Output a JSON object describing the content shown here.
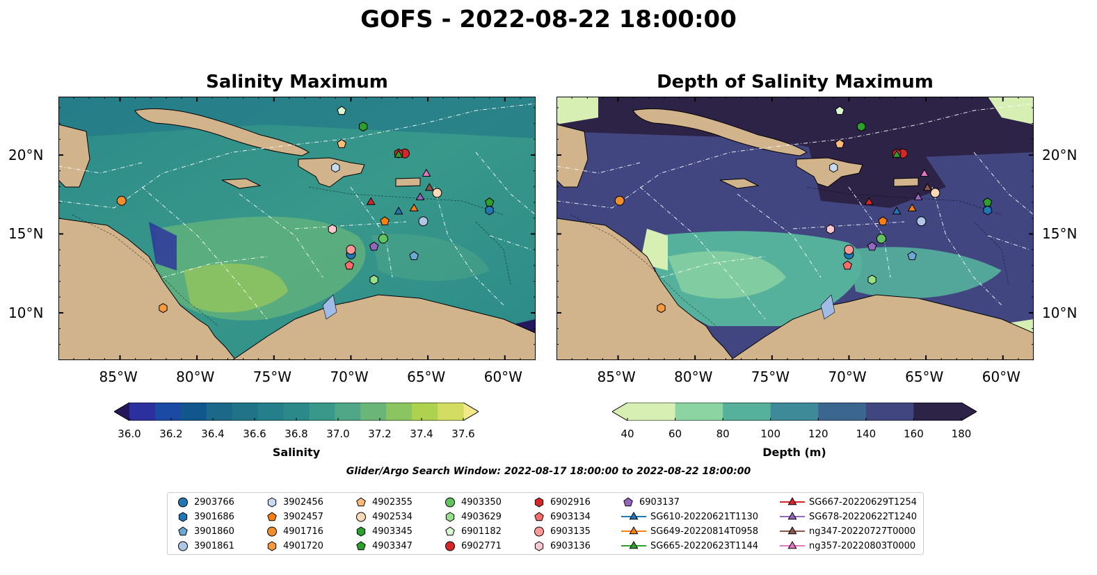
{
  "suptitle": "GOFS - 2022-08-22 18:00:00",
  "left_panel": {
    "title": "Salinity Maximum",
    "colorbar": {
      "label": "Salinity",
      "ticks": [
        "36.0",
        "36.2",
        "36.4",
        "36.6",
        "36.8",
        "37.0",
        "37.2",
        "37.4",
        "37.6"
      ],
      "colors": [
        "#24175a",
        "#2c2f9e",
        "#1b4aa4",
        "#11578e",
        "#1b6889",
        "#217488",
        "#247f8a",
        "#2b8a89",
        "#38988a",
        "#4fa788",
        "#6ab679",
        "#8ac562",
        "#aed24f",
        "#d2dd62",
        "#f1e98b"
      ]
    }
  },
  "right_panel": {
    "title": "Depth of Salinity Maximum",
    "colorbar": {
      "label": "Depth (m)",
      "ticks": [
        "40",
        "60",
        "80",
        "100",
        "120",
        "140",
        "160",
        "180"
      ],
      "colors": [
        "#d8efb4",
        "#8cd5a3",
        "#55b19c",
        "#3f8a99",
        "#3b6690",
        "#414680",
        "#2d2346"
      ]
    }
  },
  "lon_labels": [
    "85°W",
    "80°W",
    "75°W",
    "70°W",
    "65°W",
    "60°W"
  ],
  "lat_labels": [
    "20°N",
    "15°N",
    "10°N"
  ],
  "search_window": "Glider/Argo Search Window: 2022-08-17 18:00:00 to 2022-08-22 18:00:00",
  "legend": {
    "items": [
      {
        "label": "2903766",
        "marker": "circle",
        "color": "#1f77b4",
        "lon": -70.0,
        "lat": 13.7
      },
      {
        "label": "3901686",
        "marker": "hexagon",
        "color": "#1f77b4",
        "lon": -61.0,
        "lat": 16.5
      },
      {
        "label": "3901860",
        "marker": "pentagon",
        "color": "#6aa9d6",
        "lon": -65.9,
        "lat": 13.6
      },
      {
        "label": "3901861",
        "marker": "circle",
        "color": "#aec7e8",
        "lon": -65.3,
        "lat": 15.8
      },
      {
        "label": "3902456",
        "marker": "hexagon",
        "color": "#c6dbef",
        "lon": -71.0,
        "lat": 19.2
      },
      {
        "label": "3902457",
        "marker": "pentagon",
        "color": "#ff7f0e",
        "lon": -67.8,
        "lat": 15.8
      },
      {
        "label": "4901716",
        "marker": "circle",
        "color": "#f28e2b",
        "lon": -84.9,
        "lat": 17.1
      },
      {
        "label": "4901720",
        "marker": "hexagon",
        "color": "#f59a3f",
        "lon": -82.2,
        "lat": 10.3
      },
      {
        "label": "4902355",
        "marker": "pentagon",
        "color": "#ffbb78",
        "lon": -70.6,
        "lat": 20.7
      },
      {
        "label": "4902534",
        "marker": "circle",
        "color": "#fdd9b5",
        "lon": -64.4,
        "lat": 17.6
      },
      {
        "label": "4903345",
        "marker": "hexagon",
        "color": "#2ca02c",
        "lon": -69.2,
        "lat": 21.8
      },
      {
        "label": "4903347",
        "marker": "pentagon",
        "color": "#2ca02c",
        "lon": -61.0,
        "lat": 17.0
      },
      {
        "label": "4903350",
        "marker": "circle",
        "color": "#5fc45f",
        "lon": -67.9,
        "lat": 14.7
      },
      {
        "label": "4903629",
        "marker": "hexagon",
        "color": "#98df8a",
        "lon": -68.5,
        "lat": 12.1
      },
      {
        "label": "6901182",
        "marker": "pentagon",
        "color": "#d9f7d0",
        "lon": -70.6,
        "lat": 22.8
      },
      {
        "label": "6902771",
        "marker": "circle",
        "color": "#d62728",
        "lon": -66.5,
        "lat": 20.1
      },
      {
        "label": "6902916",
        "marker": "hexagon",
        "color": "#d62728",
        "lon": -66.9,
        "lat": 20.1
      },
      {
        "label": "6903134",
        "marker": "pentagon",
        "color": "#ff6b6b",
        "lon": -70.1,
        "lat": 13.0
      },
      {
        "label": "6903135",
        "marker": "circle",
        "color": "#ff9896",
        "lon": -70.0,
        "lat": 14.0
      },
      {
        "label": "6903136",
        "marker": "hexagon",
        "color": "#ffc7cf",
        "lon": -71.2,
        "lat": 15.3
      },
      {
        "label": "6903137",
        "marker": "pentagon",
        "color": "#9467bd",
        "lon": -68.5,
        "lat": 14.2
      },
      {
        "label": "SG610-20220621T1130",
        "marker": "triangle",
        "color": "#1f77b4",
        "line": true,
        "lon": -66.9,
        "lat": 16.4
      },
      {
        "label": "SG649-20220814T0958",
        "marker": "triangle",
        "color": "#ff7f0e",
        "line": true,
        "lon": -65.9,
        "lat": 16.6
      },
      {
        "label": "SG665-20220623T1144",
        "marker": "triangle",
        "color": "#2ca02c",
        "line": true,
        "lon": -66.9,
        "lat": 20.0
      },
      {
        "label": "SG667-20220629T1254",
        "marker": "triangle",
        "color": "#d62728",
        "line": true,
        "lon": -68.7,
        "lat": 17.0
      },
      {
        "label": "SG678-20220622T1240",
        "marker": "triangle",
        "color": "#9467bd",
        "line": true,
        "lon": -65.5,
        "lat": 17.3
      },
      {
        "label": "ng347-20220727T0000",
        "marker": "triangle",
        "color": "#8c564b",
        "line": true,
        "lon": -64.9,
        "lat": 17.9
      },
      {
        "label": "ng357-20220803T0000",
        "marker": "triangle",
        "color": "#e377c2",
        "line": true,
        "lon": -65.1,
        "lat": 18.8
      }
    ]
  }
}
